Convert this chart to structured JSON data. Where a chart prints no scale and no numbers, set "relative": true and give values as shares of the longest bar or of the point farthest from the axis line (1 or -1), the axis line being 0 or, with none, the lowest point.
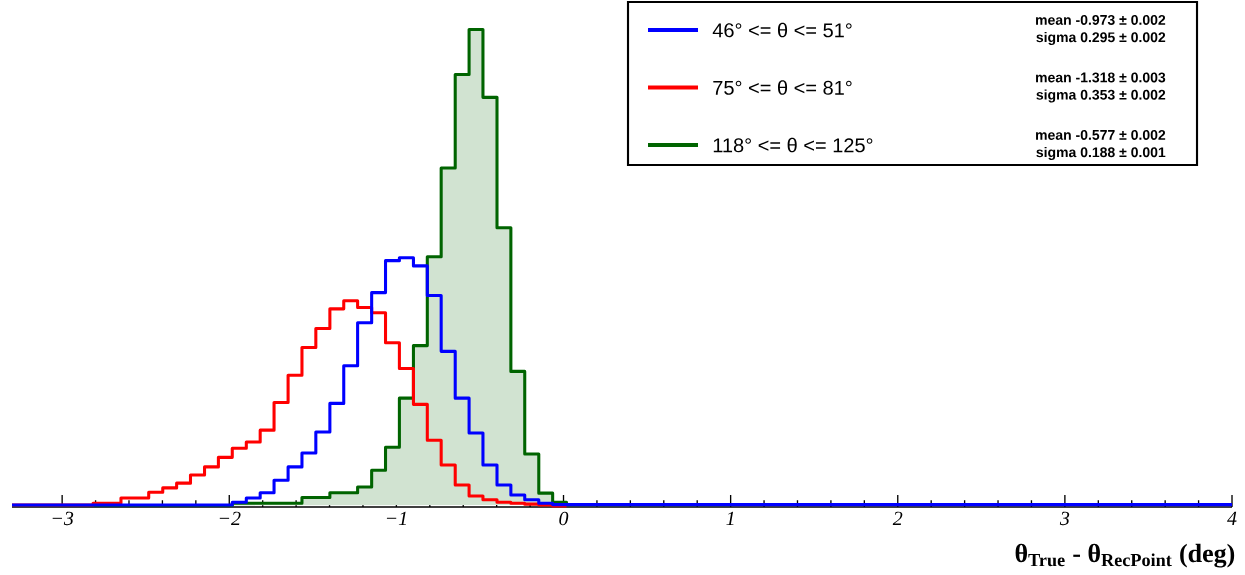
{
  "chart_data": {
    "type": "step",
    "relative": true,
    "xlabel": "θ$_{True}$ -  θ$_{RecPoint}$ (deg)",
    "xlim": [
      -3.3,
      4.0
    ],
    "xticks": [
      {
        "value": -3,
        "label": "−3"
      },
      {
        "value": -2,
        "label": "−2"
      },
      {
        "value": -1,
        "label": "−1"
      },
      0,
      1,
      2,
      3,
      4
    ],
    "legend": "top right",
    "annotations": [
      "mean -0.973 ± 0.002",
      "sigma 0.295 ± 0.002",
      "mean -1.318 ± 0.003",
      "sigma 0.353 ± 0.002",
      "mean -0.577 ± 0.002",
      "sigma 0.188 ± 0.001"
    ],
    "series": [
      {
        "name": "46° <= θ <=  51°",
        "color": "#0000ff",
        "x": [
          -3.3,
          -1.982,
          -1.898,
          -1.815,
          -1.732,
          -1.648,
          -1.565,
          -1.482,
          -1.398,
          -1.315,
          -1.232,
          -1.148,
          -1.065,
          -0.982,
          -0.898,
          -0.815,
          -0.732,
          -0.648,
          -0.565,
          -0.482,
          -0.398,
          -0.315,
          -0.232,
          -0.148,
          -0.065,
          4.0
        ],
        "values": [
          0.004,
          0.01,
          0.019,
          0.03,
          0.056,
          0.084,
          0.113,
          0.157,
          0.217,
          0.296,
          0.386,
          0.449,
          0.516,
          0.522,
          0.505,
          0.443,
          0.326,
          0.228,
          0.155,
          0.088,
          0.046,
          0.025,
          0.015,
          0.008,
          0.005,
          0.005
        ]
      },
      {
        "name": "75° <= θ <=  81°",
        "color": "#ff0000",
        "x": [
          -3.3,
          -2.815,
          -2.732,
          -2.648,
          -2.565,
          -2.482,
          -2.398,
          -2.315,
          -2.232,
          -2.148,
          -2.065,
          -1.982,
          -1.898,
          -1.815,
          -1.732,
          -1.648,
          -1.565,
          -1.482,
          -1.398,
          -1.315,
          -1.232,
          -1.148,
          -1.065,
          -0.982,
          -0.898,
          -0.815,
          -0.732,
          -0.648,
          -0.565,
          -0.482,
          -0.398,
          -0.315,
          -0.232,
          -0.148,
          -0.065,
          0.018
        ],
        "values": [
          0.004,
          0.008,
          0.008,
          0.019,
          0.019,
          0.031,
          0.04,
          0.05,
          0.067,
          0.084,
          0.104,
          0.123,
          0.136,
          0.161,
          0.219,
          0.276,
          0.334,
          0.374,
          0.415,
          0.432,
          0.418,
          0.407,
          0.344,
          0.29,
          0.215,
          0.14,
          0.088,
          0.046,
          0.023,
          0.015,
          0.01,
          0.008,
          0.006,
          0.004,
          0.002,
          0.002
        ]
      },
      {
        "name": "118° <= θ <= 125°",
        "color": "#006400",
        "x": [
          -3.3,
          -1.982,
          -1.898,
          -1.815,
          -1.732,
          -1.648,
          -1.565,
          -1.482,
          -1.398,
          -1.315,
          -1.232,
          -1.148,
          -1.065,
          -0.982,
          -0.898,
          -0.815,
          -0.732,
          -0.648,
          -0.565,
          -0.482,
          -0.398,
          -0.315,
          -0.232,
          -0.148,
          -0.065,
          0.018,
          1.0
        ],
        "values": [
          0.003,
          0.008,
          0.008,
          0.008,
          0.008,
          0.008,
          0.02,
          0.02,
          0.03,
          0.03,
          0.042,
          0.077,
          0.125,
          0.228,
          0.338,
          0.524,
          0.71,
          0.906,
          1,
          0.858,
          0.585,
          0.284,
          0.111,
          0.029,
          0.01,
          0.005,
          0.005
        ]
      }
    ]
  }
}
